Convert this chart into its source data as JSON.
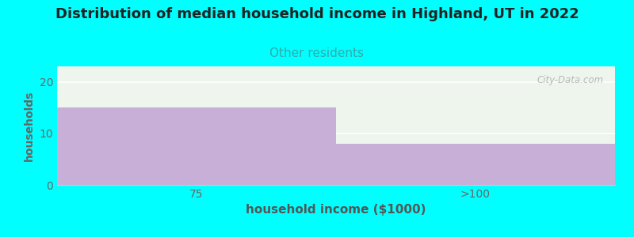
{
  "title": "Distribution of median household income in Highland, UT in 2022",
  "subtitle": "Other residents",
  "categories": [
    "75",
    ">100"
  ],
  "values": [
    15,
    8
  ],
  "bar_color": "#c8afd8",
  "bar_edgecolor": "#ffffff",
  "background_color": "#00ffff",
  "plot_bg_color": "#edf5ed",
  "xlabel": "household income ($1000)",
  "ylabel": "households",
  "ylim": [
    0,
    23
  ],
  "yticks": [
    0,
    10,
    20
  ],
  "title_fontsize": 13,
  "subtitle_fontsize": 11,
  "subtitle_color": "#33aaaa",
  "xlabel_color": "#555555",
  "ylabel_color": "#666666",
  "tick_color": "#666666",
  "watermark": "City-Data.com"
}
